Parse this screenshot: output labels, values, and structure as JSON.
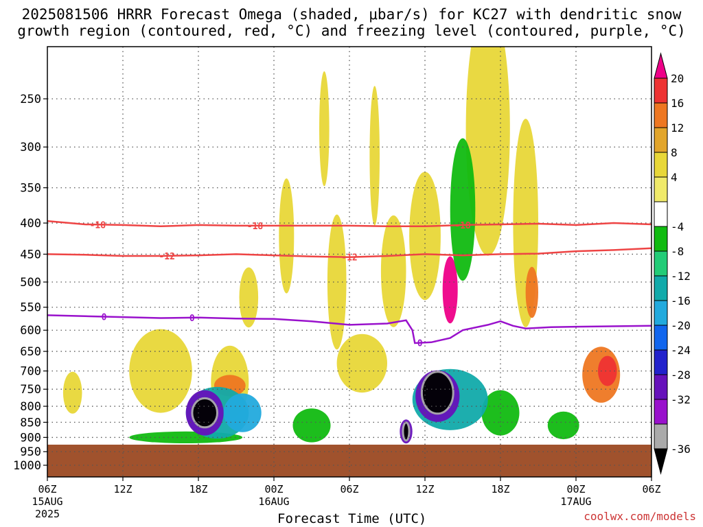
{
  "chart_data": {
    "type": "heatmap",
    "title_line1": "2025081506 HRRR Forecast Omega (shaded, μbar/s) for KC27 with dendritic snow",
    "title_line2": "growth region (contoured, red, °C) and freezing level (contoured, purple, °C)",
    "xlabel": "Forecast Time (UTC)",
    "credit": "coolwx.com/models",
    "x_ticks": [
      {
        "label": "06Z",
        "date": "15AUG",
        "year": "2025"
      },
      {
        "label": "12Z"
      },
      {
        "label": "18Z"
      },
      {
        "label": "00Z",
        "date": "16AUG"
      },
      {
        "label": "06Z"
      },
      {
        "label": "12Z"
      },
      {
        "label": "18Z"
      },
      {
        "label": "00Z",
        "date": "17AUG"
      },
      {
        "label": "06Z"
      }
    ],
    "x_range_hours": [
      0,
      48
    ],
    "y_pressure_ticks": [
      250,
      300,
      350,
      400,
      450,
      500,
      550,
      600,
      650,
      700,
      750,
      800,
      850,
      900,
      950,
      1000
    ],
    "y_scale": "log pressure (hPa), inverted",
    "ground_pressure_hpa": 925,
    "grid": true,
    "colorbar": {
      "placement": "right",
      "labels": [
        "20",
        "16",
        "12",
        "8",
        "4",
        "-4",
        "-8",
        "-12",
        "-16",
        "-20",
        "-24",
        "-28",
        "-32",
        "-36"
      ],
      "colors": [
        "#ee0088",
        "#ee3333",
        "#ee7722",
        "#e2a52b",
        "#e8d738",
        "#f0ea6a",
        "#ffffff",
        "#11bb11",
        "#22cc77",
        "#11aaaa",
        "#22aadd",
        "#1166ee",
        "#2222cc",
        "#6611bb",
        "#9911cc",
        "#aaaaaa",
        "#000000"
      ]
    },
    "contours": [
      {
        "label": "-18",
        "color": "#ee4444",
        "points": [
          [
            0,
            397
          ],
          [
            3,
            402
          ],
          [
            6,
            403
          ],
          [
            9,
            405
          ],
          [
            12,
            403
          ],
          [
            15,
            404
          ],
          [
            18,
            404
          ],
          [
            21,
            404
          ],
          [
            24,
            404
          ],
          [
            27,
            405
          ],
          [
            30,
            405
          ],
          [
            33,
            403
          ],
          [
            36,
            402
          ],
          [
            39,
            401
          ],
          [
            42,
            403
          ],
          [
            45,
            400
          ],
          [
            48,
            402
          ]
        ],
        "label_hours": [
          4.0,
          16.5,
          33.0
        ]
      },
      {
        "label": "-12",
        "color": "#ee4444",
        "points": [
          [
            0,
            450
          ],
          [
            3,
            451
          ],
          [
            6,
            453
          ],
          [
            9,
            453
          ],
          [
            12,
            452
          ],
          [
            15,
            450
          ],
          [
            18,
            452
          ],
          [
            21,
            454
          ],
          [
            24,
            455
          ],
          [
            27,
            453
          ],
          [
            30,
            450
          ],
          [
            33,
            452
          ],
          [
            36,
            450
          ],
          [
            39,
            449
          ],
          [
            42,
            445
          ],
          [
            45,
            443
          ],
          [
            48,
            440
          ]
        ],
        "label_hours": [
          9.5,
          24.0
        ]
      },
      {
        "label": "0",
        "color": "#9911cc",
        "points": [
          [
            0,
            567
          ],
          [
            3,
            569
          ],
          [
            6,
            571
          ],
          [
            9,
            573
          ],
          [
            12,
            572
          ],
          [
            15,
            574
          ],
          [
            18,
            575
          ],
          [
            21,
            580
          ],
          [
            24,
            588
          ],
          [
            27,
            585
          ],
          [
            28.5,
            578
          ],
          [
            29.0,
            600
          ],
          [
            29.2,
            630
          ],
          [
            30.5,
            628
          ],
          [
            32,
            618
          ],
          [
            33,
            600
          ],
          [
            35,
            588
          ],
          [
            36,
            580
          ],
          [
            37,
            590
          ],
          [
            38,
            596
          ],
          [
            40,
            593
          ],
          [
            42,
            592
          ],
          [
            48,
            590
          ]
        ],
        "label_hours": [
          4.5,
          11.5,
          29.6
        ]
      }
    ],
    "shaded_regions": [
      {
        "value": 4,
        "t": 2.0,
        "p": 760,
        "dt": 1.5,
        "dp": 120
      },
      {
        "value": 4,
        "t": 9.0,
        "p": 700,
        "dt": 5.0,
        "dp": 220
      },
      {
        "value": 4,
        "t": 14.5,
        "p": 730,
        "dt": 3.0,
        "dp": 200
      },
      {
        "value": 4,
        "t": 16.0,
        "p": 530,
        "dt": 1.5,
        "dp": 120
      },
      {
        "value": 4,
        "t": 19.0,
        "p": 420,
        "dt": 1.2,
        "dp": 180
      },
      {
        "value": 4,
        "t": 22.0,
        "p": 280,
        "dt": 0.8,
        "dp": 120
      },
      {
        "value": 4,
        "t": 23.0,
        "p": 500,
        "dt": 1.5,
        "dp": 250
      },
      {
        "value": 4,
        "t": 25.0,
        "p": 680,
        "dt": 4.0,
        "dp": 150
      },
      {
        "value": 4,
        "t": 26.0,
        "p": 310,
        "dt": 0.8,
        "dp": 160
      },
      {
        "value": 4,
        "t": 27.5,
        "p": 480,
        "dt": 2.0,
        "dp": 200
      },
      {
        "value": 4,
        "t": 30.0,
        "p": 420,
        "dt": 2.5,
        "dp": 200
      },
      {
        "value": 4,
        "t": 35.0,
        "p": 280,
        "dt": 3.5,
        "dp": 250
      },
      {
        "value": 4,
        "t": 38.0,
        "p": 400,
        "dt": 2.0,
        "dp": 300
      },
      {
        "value": 12,
        "t": 14.5,
        "p": 740,
        "dt": 2.5,
        "dp": 60
      },
      {
        "value": 12,
        "t": 38.5,
        "p": 520,
        "dt": 1.0,
        "dp": 100
      },
      {
        "value": 12,
        "t": 44.0,
        "p": 710,
        "dt": 3.0,
        "dp": 150
      },
      {
        "value": 16,
        "t": 44.5,
        "p": 700,
        "dt": 1.5,
        "dp": 80
      },
      {
        "value": 20,
        "t": 32.0,
        "p": 515,
        "dt": 1.2,
        "dp": 130
      },
      {
        "value": -8,
        "t": 11.0,
        "p": 900,
        "dt": 9.0,
        "dp": 40
      },
      {
        "value": -8,
        "t": 21.0,
        "p": 860,
        "dt": 3.0,
        "dp": 110
      },
      {
        "value": -8,
        "t": 33.0,
        "p": 380,
        "dt": 2.0,
        "dp": 200
      },
      {
        "value": -8,
        "t": 36.0,
        "p": 820,
        "dt": 3.0,
        "dp": 140
      },
      {
        "value": -8,
        "t": 41.0,
        "p": 860,
        "dt": 2.5,
        "dp": 90
      },
      {
        "value": -16,
        "t": 13.5,
        "p": 820,
        "dt": 5.0,
        "dp": 160
      },
      {
        "value": -16,
        "t": 32.0,
        "p": 780,
        "dt": 6.0,
        "dp": 180
      },
      {
        "value": -20,
        "t": 15.5,
        "p": 820,
        "dt": 3.0,
        "dp": 120
      },
      {
        "value": -28,
        "t": 12.5,
        "p": 820,
        "dt": 3.0,
        "dp": 140
      },
      {
        "value": -28,
        "t": 28.5,
        "p": 880,
        "dt": 1.0,
        "dp": 80
      },
      {
        "value": -28,
        "t": 31.0,
        "p": 770,
        "dt": 3.5,
        "dp": 150
      },
      {
        "value": -36,
        "t": 12.5,
        "p": 820,
        "dt": 2.0,
        "dp": 90
      },
      {
        "value": -36,
        "t": 28.5,
        "p": 880,
        "dt": 0.5,
        "dp": 60
      },
      {
        "value": -36,
        "t": 31.0,
        "p": 760,
        "dt": 2.5,
        "dp": 120
      }
    ]
  }
}
